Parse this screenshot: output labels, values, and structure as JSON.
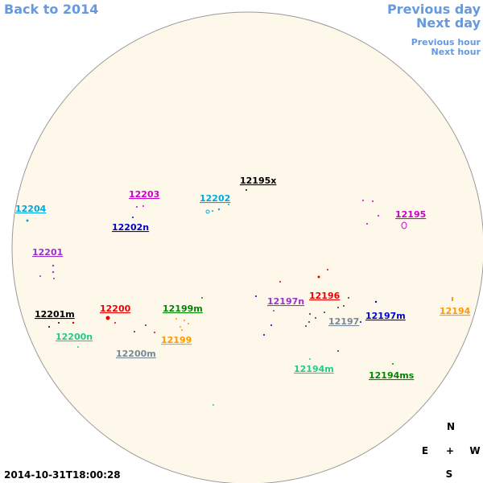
{
  "nav": {
    "back_year": "Back to 2014",
    "previous_day": "Previous day",
    "next_day": "Next day",
    "previous_hour": "Previous hour",
    "next_hour": "Next hour"
  },
  "regions": [
    "12195x",
    "12203",
    "12202",
    "12204",
    "12202n",
    "12195",
    "12201",
    "12196",
    "12197n",
    "12194",
    "12201m",
    "12200",
    "12199m",
    "12197m",
    "12197",
    "12200n",
    "12199",
    "12200m",
    "12194m",
    "12194ms"
  ],
  "compass": {
    "north": "N",
    "east": "E",
    "center": "+",
    "west": "W",
    "south": "S"
  },
  "timestamp": "2014-10-31T18:00:28"
}
